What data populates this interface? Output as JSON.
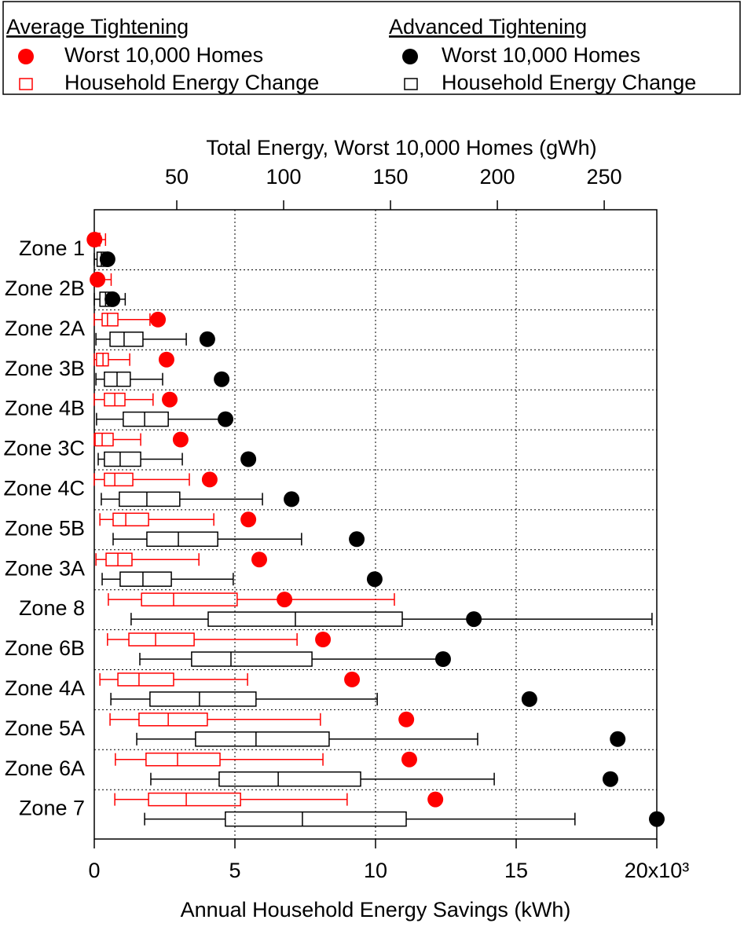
{
  "chart_data": {
    "type": "boxplot",
    "title_top": "Total Energy, Worst 10,000 Homes (gWh)",
    "xlabel": "Annual Household Energy Savings (kWh)",
    "categories": [
      "Zone 1",
      "Zone 2B",
      "Zone 2A",
      "Zone 3B",
      "Zone 4B",
      "Zone 3C",
      "Zone 4C",
      "Zone 5B",
      "Zone 3A",
      "Zone 8",
      "Zone 6B",
      "Zone 4A",
      "Zone 5A",
      "Zone 6A",
      "Zone 7"
    ],
    "xlim": [
      0,
      20
    ],
    "xticks": [
      0,
      5,
      10,
      15,
      {
        "value": 20,
        "label": "20x10³"
      }
    ],
    "x2lim": [
      11.4,
      274.6
    ],
    "x2ticks": [
      50,
      100,
      150,
      200,
      250
    ],
    "grid": true,
    "groups": [
      {
        "title": "Average Tightening",
        "color": "#ff0000",
        "series": [
          {
            "name": "Worst 10,000 Homes",
            "axis": "x2",
            "values": [
              11.5,
              12.9,
              41.2,
              45.2,
              46.7,
              51.8,
              65.4,
              83.5,
              88.6,
              100.4,
              118.4,
              132,
              157.4,
              158.8,
              171
            ]
          },
          {
            "name": "Household Energy Change",
            "boxes": [
              [
                0,
                0.05,
                0.1,
                0.2,
                0.4
              ],
              [
                0,
                0.05,
                0.1,
                0.2,
                0.6
              ],
              [
                0,
                0.28,
                0.47,
                0.84,
                1.98
              ],
              [
                0,
                0.08,
                0.31,
                0.5,
                1.26
              ],
              [
                0,
                0.36,
                0.73,
                1.09,
                2.09
              ],
              [
                0,
                0.03,
                0.28,
                0.67,
                1.65
              ],
              [
                0,
                0.36,
                0.73,
                1.37,
                3.38
              ],
              [
                0.2,
                0.67,
                1.12,
                1.93,
                4.25
              ],
              [
                0.06,
                0.42,
                0.84,
                1.34,
                3.72
              ],
              [
                0.5,
                1.68,
                2.82,
                5.08,
                10.67
              ],
              [
                0.47,
                1.23,
                2.18,
                3.55,
                7.21
              ],
              [
                0.2,
                0.84,
                1.59,
                2.82,
                5.45
              ],
              [
                0.56,
                1.59,
                2.63,
                4.02,
                8.04
              ],
              [
                0.75,
                1.84,
                2.96,
                4.47,
                8.13
              ],
              [
                0.73,
                1.93,
                3.27,
                5.2,
                8.99
              ]
            ]
          }
        ]
      },
      {
        "title": "Advanced Tightening",
        "color": "#000000",
        "series": [
          {
            "name": "Worst 10,000 Homes",
            "axis": "x2",
            "values": [
              17.6,
              19.9,
              64.3,
              71,
              72.8,
              83.5,
              103.7,
              134.2,
              142.6,
              189,
              174.6,
              215,
              256.3,
              252.9,
              274.6
            ]
          },
          {
            "name": "Household Energy Change",
            "boxes": [
              [
                0,
                0.1,
                0.25,
                0.4,
                0.6
              ],
              [
                0,
                0.2,
                0.4,
                0.6,
                1.1
              ],
              [
                0.06,
                0.56,
                1.06,
                1.73,
                3.27
              ],
              [
                0.06,
                0.36,
                0.81,
                1.28,
                2.43
              ],
              [
                0.08,
                1.03,
                1.79,
                2.63,
                4.66
              ],
              [
                0.14,
                0.36,
                0.92,
                1.65,
                3.13
              ],
              [
                0.25,
                0.89,
                1.87,
                3.04,
                5.98
              ],
              [
                0.67,
                1.87,
                2.99,
                4.39,
                7.37
              ],
              [
                0.28,
                0.92,
                1.73,
                2.74,
                4.94
              ],
              [
                1.31,
                4.05,
                7.15,
                10.95,
                19.83
              ],
              [
                1.62,
                3.46,
                4.86,
                7.74,
                12.32
              ],
              [
                0.59,
                1.98,
                3.74,
                5.75,
                10.06
              ],
              [
                1.51,
                3.6,
                5.75,
                8.35,
                13.63
              ],
              [
                2.01,
                4.44,
                6.54,
                9.47,
                14.22
              ],
              [
                1.79,
                4.66,
                7.4,
                11.09,
                17.09
              ]
            ]
          }
        ]
      }
    ]
  }
}
